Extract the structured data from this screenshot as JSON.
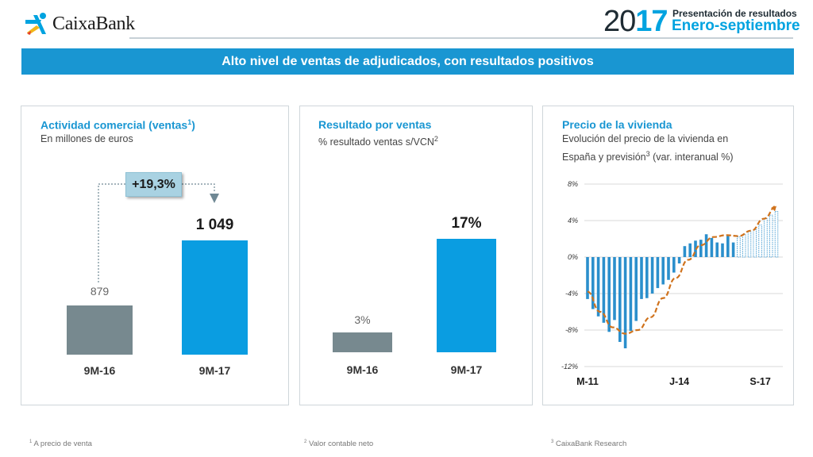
{
  "header": {
    "logo_text": "CaixaBank",
    "year_prefix": "20",
    "year_accent": "17",
    "subtitle_1": "Presentación de resultados",
    "subtitle_2": "Enero-septiembre"
  },
  "banner": {
    "title": "Alto nivel de ventas de adjudicados, con resultados positivos"
  },
  "panels": [
    {
      "title": "Actividad comercial (ventas",
      "title_sup": "1",
      "title_end": ")",
      "subtitle": "En millones de euros",
      "growth": "+19,3%",
      "chart_data": {
        "type": "bar",
        "categories": [
          "9M-16",
          "9M-17"
        ],
        "values": [
          879,
          1049
        ],
        "labels": [
          "879",
          "1 049"
        ],
        "colors": [
          "#77898f",
          "#0a9de1"
        ]
      }
    },
    {
      "title": "Resultado por ventas",
      "subtitle": "% resultado ventas s/VCN",
      "subtitle_sup": "2",
      "chart_data": {
        "type": "bar",
        "categories": [
          "9M-16",
          "9M-17"
        ],
        "values": [
          3,
          17
        ],
        "labels": [
          "3%",
          "17%"
        ],
        "colors": [
          "#77898f",
          "#0a9de1"
        ]
      }
    },
    {
      "title": "Precio de la vivienda",
      "subtitle_1": "Evolución del precio de la vivienda en",
      "subtitle_2": "España y previsión",
      "subtitle_sup": "3",
      "subtitle_end": " (var. interanual %)",
      "chart_data": {
        "type": "bar",
        "y_ticks": [
          "8%",
          "4%",
          "0%",
          "-4%",
          "-8%",
          "-12%"
        ],
        "ylim": [
          -12,
          8
        ],
        "x_ticks": [
          "M-11",
          "J-14",
          "S-17"
        ],
        "series": [
          {
            "values": [
              -4.6,
              -5.7,
              -6.5,
              -7.2,
              -8.2,
              -6.9,
              -9.3,
              -10.0,
              -8.1,
              -7.0,
              -4.6,
              -4.5,
              -4.0,
              -3.4,
              -3.0,
              -2.5,
              -1.7,
              -0.7,
              1.2,
              1.5,
              1.8,
              1.9,
              2.5,
              2.1,
              1.6,
              1.5,
              2.3,
              1.6
            ]
          },
          {
            "values": [
              2.2,
              2.5,
              2.8,
              3.0,
              3.5,
              4.2,
              4.6,
              5.0
            ]
          },
          {
            "values": [
              -3.8,
              -6.0,
              -7.7,
              -8.4,
              -8.0,
              -6.6,
              -4.5,
              -2.3,
              -0.3,
              1.3,
              2.2,
              2.4,
              2.3,
              2.9,
              4.2,
              5.6
            ]
          }
        ],
        "colors": {
          "actual": "#2b8fcc",
          "forecast": "#2b8fcc",
          "trend": "#d0731d"
        }
      }
    }
  ],
  "footnotes": [
    {
      "sup": "1",
      "text": " A precio de venta"
    },
    {
      "sup": "2",
      "text": " Valor contable neto"
    },
    {
      "sup": "3",
      "text": " CaixaBank Research"
    }
  ]
}
